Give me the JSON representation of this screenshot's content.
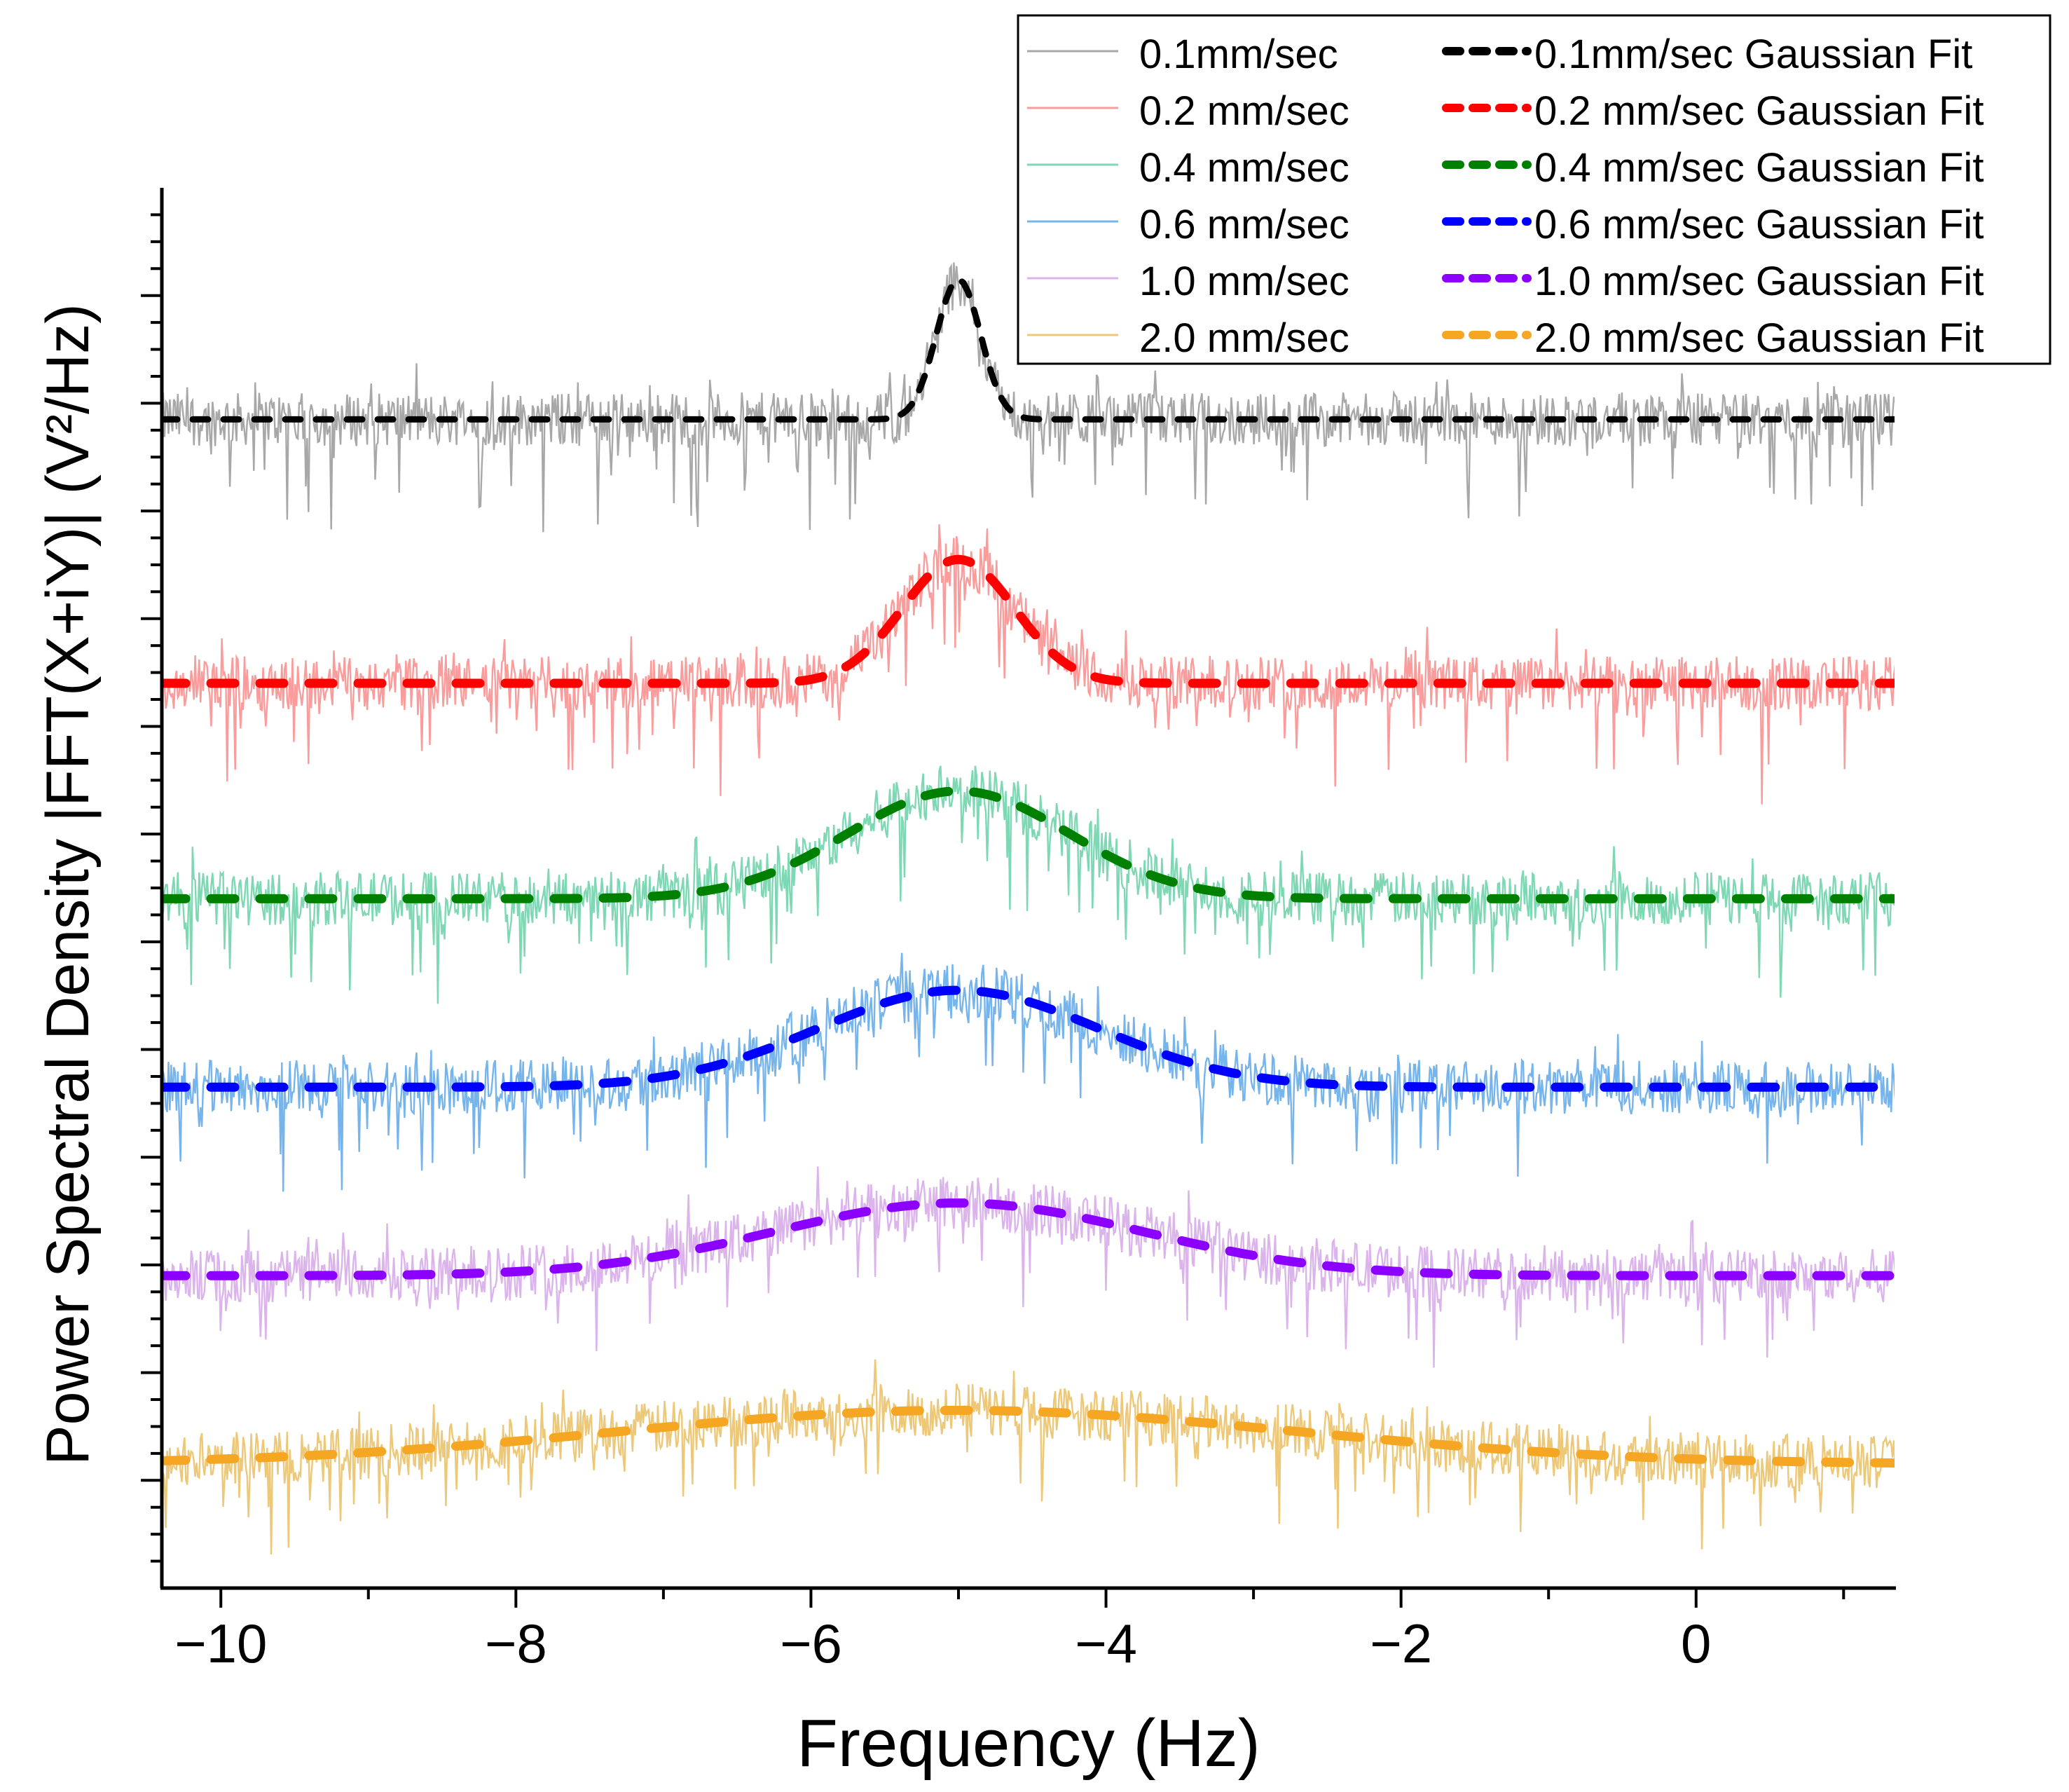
{
  "chart_data": {
    "type": "line",
    "title": "",
    "xlabel": "Frequency (Hz)",
    "ylabel": "Power Spectral Density |FFT(X+iY)| (V²/Hz)",
    "xlim": [
      -10.4,
      1.35
    ],
    "ylim": [
      0,
      26
    ],
    "x_ticks": [
      -10,
      -8,
      -6,
      -4,
      -2,
      0
    ],
    "x_tick_labels": [
      "−10",
      "−8",
      "−6",
      "−4",
      "−2",
      "0"
    ],
    "y_tick_labels_shown": false,
    "grid": false,
    "legend_position": "top-right",
    "series": [
      {
        "name": "0.1mm/sec",
        "fit_name": "0.1mm/sec  Gaussian Fit",
        "raw_color": "#a8a8a8",
        "fit_color": "#000000",
        "baseline": 21.7,
        "amplitude": 2.6,
        "center": -5.0,
        "sigma": 0.15,
        "noise_amp": 1.0,
        "noise_spikes": 1.8,
        "fit_width": 9
      },
      {
        "name": "0.2 mm/sec",
        "fit_name": "0.2 mm/sec Gaussian Fit",
        "raw_color": "#fa9c9c",
        "fit_color": "#ff0000",
        "baseline": 16.8,
        "amplitude": 2.3,
        "center": -5.0,
        "sigma": 0.38,
        "noise_amp": 1.0,
        "noise_spikes": 1.8,
        "fit_width": 13
      },
      {
        "name": "0.4 mm/sec",
        "fit_name": "0.4 mm/sec Gaussian Fit",
        "raw_color": "#7fd8b4",
        "fit_color": "#008000",
        "baseline": 12.8,
        "amplitude": 2.0,
        "center": -5.0,
        "sigma": 0.75,
        "noise_amp": 1.0,
        "noise_spikes": 1.6,
        "fit_width": 13
      },
      {
        "name": "0.6 mm/sec",
        "fit_name": "0.6 mm/sec Gaussian Fit",
        "raw_color": "#76b4ec",
        "fit_color": "#0000ff",
        "baseline": 9.3,
        "amplitude": 1.8,
        "center": -5.0,
        "sigma": 0.95,
        "noise_amp": 1.0,
        "noise_spikes": 1.6,
        "fit_width": 13
      },
      {
        "name": "1.0 mm/sec",
        "fit_name": "1.0 mm/sec Gaussian Fit",
        "raw_color": "#dcb4ec",
        "fit_color": "#8b00ff",
        "baseline": 5.8,
        "amplitude": 1.35,
        "center": -5.0,
        "sigma": 1.25,
        "noise_amp": 1.0,
        "noise_spikes": 1.4,
        "fit_width": 13
      },
      {
        "name": "2.0 mm/sec",
        "fit_name": "2.0 mm/sec Gaussian Fit",
        "raw_color": "#ecc878",
        "fit_color": "#f5a623",
        "baseline": 2.3,
        "amplitude": 1.0,
        "center": -5.0,
        "sigma": 2.3,
        "noise_amp": 1.0,
        "noise_spikes": 1.4,
        "fit_width": 13
      }
    ]
  }
}
